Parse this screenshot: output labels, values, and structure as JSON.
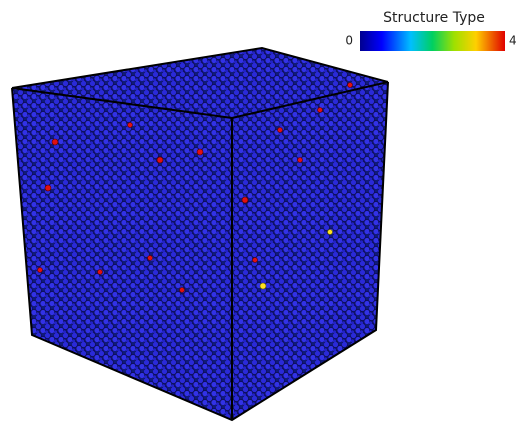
{
  "colorbar": {
    "title": "Structure Type",
    "min": "0",
    "max": "4"
  }
}
